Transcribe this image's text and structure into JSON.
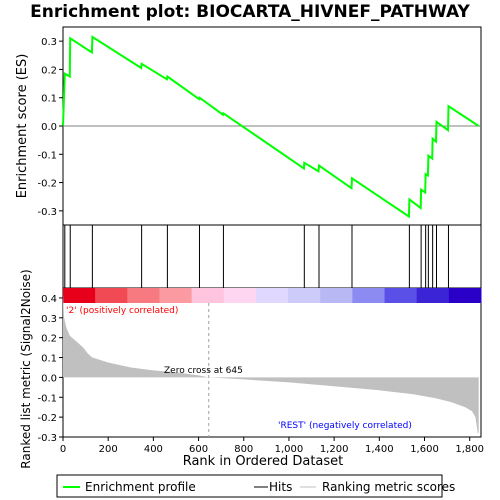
{
  "chart_data": {
    "type": "line",
    "title": "Enrichment plot: BIOCARTA_HIVNEF_PATHWAY",
    "ylabel_top": "Enrichment score (ES)",
    "ylabel_bottom": "Ranked list metric (Signal2Noise)",
    "xlabel": "Rank in Ordered Dataset",
    "xlim": [
      0,
      1850
    ],
    "es_ylim": [
      -0.35,
      0.35
    ],
    "metric_ylim": [
      -0.3,
      0.45
    ],
    "x_ticks": [
      0,
      200,
      400,
      600,
      800,
      1000,
      1200,
      1400,
      1600,
      1800
    ],
    "x_tick_labels": [
      "0",
      "200",
      "400",
      "600",
      "800",
      "1,000",
      "1,200",
      "1,400",
      "1,600",
      "1,800"
    ],
    "es_ticks": [
      -0.3,
      -0.2,
      -0.1,
      0.0,
      0.1,
      0.2,
      0.3
    ],
    "es_tick_labels": [
      "-0.3",
      "-0.2",
      "-0.1",
      "0.0",
      "0.1",
      "0.2",
      "0.3"
    ],
    "metric_ticks": [
      -0.3,
      -0.2,
      -0.1,
      0.0,
      0.1,
      0.2,
      0.3,
      0.4
    ],
    "metric_tick_labels": [
      "-0.3",
      "-0.2",
      "-0.1",
      "0.0",
      "0.1",
      "0.2",
      "0.3",
      "0.4"
    ],
    "hits": [
      8,
      32,
      130,
      348,
      462,
      604,
      710,
      1068,
      1133,
      1279,
      1533,
      1585,
      1605,
      1617,
      1636,
      1653,
      1706
    ],
    "es_points": [
      [
        0,
        0.0
      ],
      [
        8,
        0.185
      ],
      [
        30,
        0.175
      ],
      [
        32,
        0.31
      ],
      [
        128,
        0.26
      ],
      [
        130,
        0.315
      ],
      [
        346,
        0.205
      ],
      [
        348,
        0.22
      ],
      [
        460,
        0.165
      ],
      [
        462,
        0.175
      ],
      [
        602,
        0.095
      ],
      [
        604,
        0.1
      ],
      [
        708,
        0.04
      ],
      [
        710,
        0.045
      ],
      [
        1066,
        -0.15
      ],
      [
        1068,
        -0.13
      ],
      [
        1131,
        -0.16
      ],
      [
        1133,
        -0.14
      ],
      [
        1277,
        -0.22
      ],
      [
        1279,
        -0.185
      ],
      [
        1531,
        -0.32
      ],
      [
        1533,
        -0.26
      ],
      [
        1583,
        -0.29
      ],
      [
        1585,
        -0.225
      ],
      [
        1603,
        -0.235
      ],
      [
        1605,
        -0.17
      ],
      [
        1615,
        -0.175
      ],
      [
        1617,
        -0.105
      ],
      [
        1634,
        -0.115
      ],
      [
        1636,
        -0.045
      ],
      [
        1651,
        -0.055
      ],
      [
        1653,
        0.015
      ],
      [
        1704,
        -0.015
      ],
      [
        1706,
        0.07
      ],
      [
        1840,
        0.0
      ]
    ],
    "metric_profile": [
      [
        0,
        0.42
      ],
      [
        5,
        0.3
      ],
      [
        15,
        0.25
      ],
      [
        30,
        0.21
      ],
      [
        60,
        0.18
      ],
      [
        90,
        0.15
      ],
      [
        110,
        0.12
      ],
      [
        130,
        0.1
      ],
      [
        200,
        0.075
      ],
      [
        300,
        0.05
      ],
      [
        400,
        0.035
      ],
      [
        500,
        0.025
      ],
      [
        600,
        0.01
      ],
      [
        645,
        0.0
      ],
      [
        800,
        -0.01
      ],
      [
        1000,
        -0.025
      ],
      [
        1200,
        -0.045
      ],
      [
        1400,
        -0.065
      ],
      [
        1550,
        -0.085
      ],
      [
        1650,
        -0.105
      ],
      [
        1720,
        -0.125
      ],
      [
        1780,
        -0.15
      ],
      [
        1810,
        -0.17
      ],
      [
        1825,
        -0.2
      ],
      [
        1832,
        -0.25
      ],
      [
        1836,
        -0.28
      ],
      [
        1840,
        -0.28
      ]
    ],
    "zero_cross_rank": 645,
    "zero_cross_label": "Zero cross at 645",
    "pos_label": "'2' (positively correlated)",
    "neg_label": "'REST' (negatively correlated)",
    "heat_colors": [
      "#e8001a",
      "#f24a55",
      "#f77a80",
      "#fb9aa0",
      "#ffc4de",
      "#ffd6f2",
      "#e0d8ff",
      "#cccbfa",
      "#b8b8f5",
      "#8b8bf2",
      "#5a4fe6",
      "#3a24d6",
      "#2a00c8"
    ],
    "legend": [
      "Enrichment profile",
      "Hits",
      "Ranking metric scores"
    ],
    "colors": {
      "es_line": "#00ff00",
      "hits": "#000000",
      "metric": "#c0c0c0",
      "pos_label": "#ff0000",
      "neg_label": "#0000ff",
      "zero_line": "#808080",
      "zero_cross": "#a0a0a0"
    }
  }
}
